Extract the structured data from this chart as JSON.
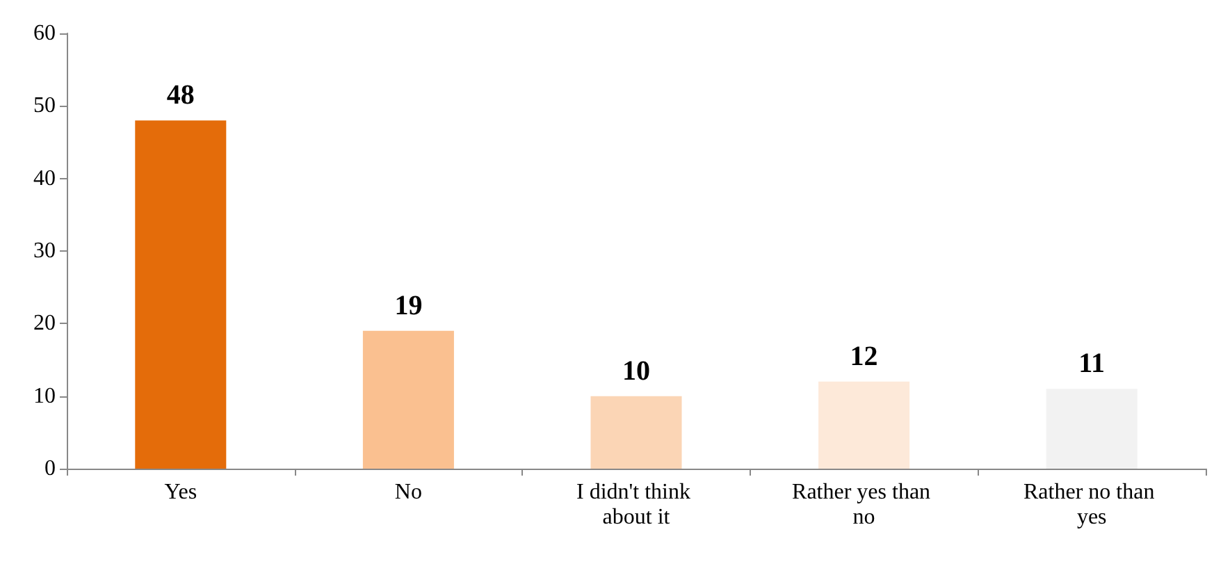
{
  "chart_data": {
    "type": "bar",
    "categories": [
      "Yes",
      "No",
      "I didn't think about it",
      "Rather yes than no",
      "Rather no than yes"
    ],
    "values": [
      48,
      19,
      10,
      12,
      11
    ],
    "colors": [
      "#e46c0a",
      "#fac090",
      "#fbd5b5",
      "#fde9d9",
      "#f2f2f2"
    ],
    "ylim": [
      0,
      60
    ],
    "yticks": [
      0,
      10,
      20,
      30,
      40,
      50,
      60
    ],
    "grid": false,
    "data_labels": true
  }
}
